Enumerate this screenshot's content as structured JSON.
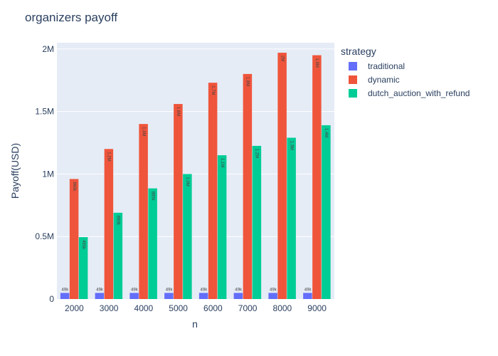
{
  "chart_data": {
    "type": "bar",
    "title": "organizers payoff",
    "xlabel": "n",
    "ylabel": "Payoff(USD)",
    "legend_title": "strategy",
    "legend_position": "right",
    "categories": [
      "2000",
      "3000",
      "4000",
      "5000",
      "6000",
      "7000",
      "8000",
      "9000"
    ],
    "ylim": [
      0,
      2050000
    ],
    "yticks": [
      0,
      500000,
      1000000,
      1500000,
      2000000
    ],
    "ytick_labels": [
      "0",
      "0.5M",
      "1M",
      "1.5M",
      "2M"
    ],
    "grid": true,
    "series": [
      {
        "name": "traditional",
        "color": "#636efa",
        "values": [
          49000,
          49000,
          49000,
          49000,
          49000,
          49000,
          49000,
          49000
        ],
        "labels": [
          "49k",
          "49k",
          "49k",
          "49k",
          "49k",
          "49k",
          "49k",
          "49k"
        ]
      },
      {
        "name": "dynamic",
        "color": "#ef553b",
        "values": [
          960000,
          1200000,
          1400000,
          1560000,
          1730000,
          1800000,
          1970000,
          1950000
        ],
        "labels": [
          "960k",
          "1.2M",
          "1.4M",
          "1.6M",
          "1.7M",
          "1.8M",
          "2M",
          "1.9M"
        ]
      },
      {
        "name": "dutch_auction_with_refund",
        "color": "#00cc96",
        "values": [
          495000,
          690000,
          885000,
          1000000,
          1150000,
          1225000,
          1290000,
          1390000
        ],
        "labels": [
          "495k",
          "690k",
          "885k",
          "1.0M",
          "1.1M",
          "1.2M",
          "1.3M",
          "1.4M"
        ]
      }
    ]
  }
}
